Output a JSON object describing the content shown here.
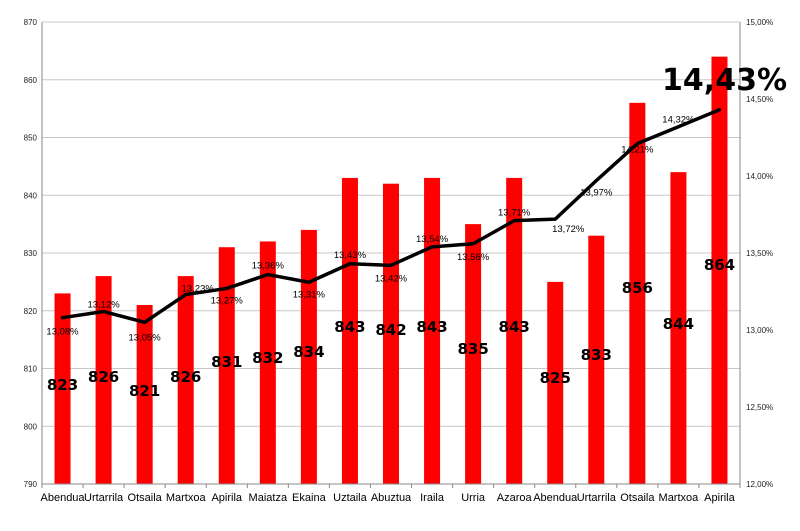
{
  "chart_data": {
    "type": "bar",
    "categories": [
      "Abendua",
      "Urtarrila",
      "Otsaila",
      "Martxoa",
      "Apirila",
      "Maiatza",
      "Ekaina",
      "Uztaila",
      "Abuztua",
      "Iraila",
      "Urria",
      "Azaroa",
      "Abendua",
      "Urtarrila",
      "Otsaila",
      "Martxoa",
      "Apirila"
    ],
    "series": [
      {
        "type": "bar",
        "values": [
          823,
          826,
          821,
          826,
          831,
          832,
          834,
          843,
          842,
          843,
          835,
          843,
          825,
          833,
          856,
          844,
          864
        ],
        "labels": [
          "823",
          "826",
          "821",
          "826",
          "831",
          "832",
          "834",
          "843",
          "842",
          "843",
          "835",
          "843",
          "825",
          "833",
          "856",
          "844",
          "864"
        ],
        "color": "#ff0000"
      },
      {
        "type": "line",
        "axis": "right",
        "values": [
          13.08,
          13.12,
          13.05,
          13.23,
          13.27,
          13.36,
          13.31,
          13.43,
          13.42,
          13.54,
          13.56,
          13.71,
          13.72,
          13.97,
          14.21,
          14.32,
          14.43
        ],
        "labels": [
          "13,08%",
          "13,12%",
          "13,05%",
          "13,23%",
          "13,27%",
          "13,36%",
          "13,31%",
          "13,43%",
          "13,42%",
          "13,54%",
          "13,56%",
          "13,71%",
          "13,72%",
          "13,97%",
          "14,21%",
          "14,32%",
          "14,43%"
        ],
        "color": "#000000"
      }
    ],
    "y_left": {
      "ylim": [
        790,
        870
      ],
      "ticks": [
        790,
        800,
        810,
        820,
        830,
        840,
        850,
        860,
        870
      ],
      "tick_labels": [
        "790",
        "800",
        "810",
        "820",
        "830",
        "840",
        "850",
        "860",
        "870"
      ]
    },
    "y_right": {
      "ylim": [
        12.0,
        15.0
      ],
      "ticks": [
        12.0,
        12.5,
        13.0,
        13.5,
        14.0,
        14.5,
        15.0
      ],
      "tick_labels": [
        "12,00%",
        "12,50%",
        "13,00%",
        "13,50%",
        "14,00%",
        "14,50%",
        "15,00%"
      ]
    },
    "grid": true,
    "legend": "none",
    "highlight_label": "14,43%"
  }
}
